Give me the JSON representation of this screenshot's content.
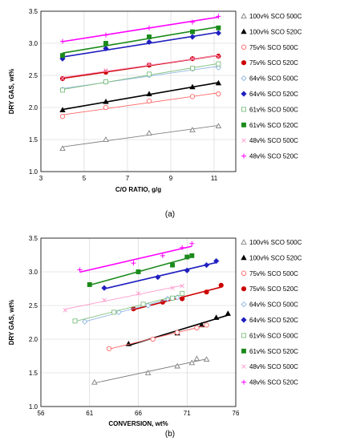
{
  "chart_data": [
    {
      "type": "scatter",
      "caption": "(a)",
      "xlabel": "C/O RATIO, g/g",
      "ylabel": "DRY GAS, wt%",
      "xlim": [
        3,
        12
      ],
      "ylim": [
        1.0,
        3.5
      ],
      "xticks": [
        3,
        5,
        7,
        9,
        11
      ],
      "yticks": [
        1.0,
        1.5,
        2.0,
        2.5,
        3.0,
        3.5
      ],
      "grid": true,
      "legend_position": "right",
      "trendlines": true,
      "series": [
        {
          "name": "100v% SCO 500C",
          "marker": "triangle-open",
          "color": "#808080",
          "x": [
            4.0,
            6.0,
            8.0,
            10.0,
            11.2
          ],
          "y": [
            1.36,
            1.5,
            1.6,
            1.65,
            1.71
          ]
        },
        {
          "name": "100v% SCO 520C",
          "marker": "triangle-filled",
          "color": "#000000",
          "x": [
            4.0,
            6.0,
            8.0,
            10.0,
            11.2
          ],
          "y": [
            1.96,
            2.09,
            2.21,
            2.32,
            2.38
          ]
        },
        {
          "name": "75v% SCO 500C",
          "marker": "circle-open",
          "color": "#ff6666",
          "x": [
            4.0,
            6.0,
            8.0,
            10.0,
            11.2
          ],
          "y": [
            1.86,
            2.0,
            2.1,
            2.17,
            2.21
          ]
        },
        {
          "name": "75v% SCO 520C",
          "marker": "circle-filled",
          "color": "#cc0000",
          "x": [
            4.0,
            6.0,
            8.0,
            10.0,
            11.2
          ],
          "y": [
            2.45,
            2.55,
            2.66,
            2.76,
            2.8
          ]
        },
        {
          "name": "64v% SCO 500C",
          "marker": "diamond-open",
          "color": "#8db4e2",
          "x": [
            4.0,
            6.0,
            8.0,
            10.0,
            11.2
          ],
          "y": [
            2.28,
            2.4,
            2.5,
            2.6,
            2.62
          ]
        },
        {
          "name": "64v% SCO 520C",
          "marker": "diamond-filled",
          "color": "#1f1fbf",
          "x": [
            4.0,
            6.0,
            8.0,
            10.0,
            11.2
          ],
          "y": [
            2.76,
            2.92,
            3.02,
            3.1,
            3.16
          ]
        },
        {
          "name": "61v% SCO 500C",
          "marker": "square-open",
          "color": "#7fbf7f",
          "x": [
            4.0,
            6.0,
            8.0,
            10.0,
            11.2
          ],
          "y": [
            2.27,
            2.4,
            2.52,
            2.61,
            2.68
          ]
        },
        {
          "name": "61v% SCO 520C",
          "marker": "square-filled",
          "color": "#1a8a1a",
          "x": [
            4.0,
            6.0,
            8.0,
            10.0,
            11.2
          ],
          "y": [
            2.81,
            3.0,
            3.1,
            3.18,
            3.24
          ]
        },
        {
          "name": "48v% SCO 500C",
          "marker": "x",
          "color": "#ff99cc",
          "x": [
            4.0,
            6.0,
            8.0,
            10.0,
            11.2
          ],
          "y": [
            2.45,
            2.58,
            2.68,
            2.76,
            2.79
          ]
        },
        {
          "name": "48v% SCO 520C",
          "marker": "plus",
          "color": "#ff00ff",
          "x": [
            4.0,
            6.0,
            8.0,
            10.0,
            11.2
          ],
          "y": [
            3.03,
            3.13,
            3.24,
            3.33,
            3.42
          ]
        }
      ]
    },
    {
      "type": "scatter",
      "caption": "(b)",
      "xlabel": "CONVERSION, wt%",
      "ylabel": "DRY GAS, wt%",
      "xlim": [
        56,
        76
      ],
      "ylim": [
        1.0,
        3.5
      ],
      "xticks": [
        56,
        61,
        66,
        71,
        76
      ],
      "yticks": [
        1.0,
        1.5,
        2.0,
        2.5,
        3.0,
        3.5
      ],
      "grid": true,
      "legend_position": "right",
      "trendlines": true,
      "series": [
        {
          "name": "100v% SCO 500C",
          "marker": "triangle-open",
          "color": "#808080",
          "x": [
            61.5,
            67.0,
            70.0,
            71.5,
            72.0,
            73.0
          ],
          "y": [
            1.36,
            1.5,
            1.6,
            1.65,
            1.71,
            1.7
          ]
        },
        {
          "name": "100v% SCO 520C",
          "marker": "triangle-filled",
          "color": "#000000",
          "x": [
            65.0,
            70.0,
            72.5,
            74.0,
            75.2
          ],
          "y": [
            1.93,
            2.09,
            2.21,
            2.32,
            2.38
          ]
        },
        {
          "name": "75v% SCO 500C",
          "marker": "circle-open",
          "color": "#ff6666",
          "x": [
            63.0,
            67.5,
            70.0,
            72.0,
            73.0
          ],
          "y": [
            1.86,
            2.0,
            2.1,
            2.17,
            2.21
          ]
        },
        {
          "name": "75v% SCO 520C",
          "marker": "circle-filled",
          "color": "#cc0000",
          "x": [
            65.5,
            68.5,
            70.5,
            73.0,
            74.5
          ],
          "y": [
            2.45,
            2.55,
            2.6,
            2.7,
            2.8
          ]
        },
        {
          "name": "64v% SCO 500C",
          "marker": "diamond-open",
          "color": "#8db4e2",
          "x": [
            60.5,
            64.0,
            67.0,
            69.0,
            70.0
          ],
          "y": [
            2.26,
            2.4,
            2.5,
            2.6,
            2.62
          ]
        },
        {
          "name": "64v% SCO 520C",
          "marker": "diamond-filled",
          "color": "#1f1fbf",
          "x": [
            62.5,
            68.0,
            71.0,
            73.0,
            74.0
          ],
          "y": [
            2.76,
            2.92,
            3.02,
            3.1,
            3.16
          ]
        },
        {
          "name": "61v% SCO 500C",
          "marker": "square-open",
          "color": "#7fbf7f",
          "x": [
            59.5,
            63.5,
            66.5,
            69.5,
            70.5
          ],
          "y": [
            2.27,
            2.4,
            2.52,
            2.61,
            2.68
          ]
        },
        {
          "name": "61v% SCO 520C",
          "marker": "square-filled",
          "color": "#1a8a1a",
          "x": [
            61.0,
            66.0,
            69.5,
            71.0,
            71.5
          ],
          "y": [
            2.81,
            3.0,
            3.1,
            3.22,
            3.24
          ]
        },
        {
          "name": "48v% SCO 500C",
          "marker": "x",
          "color": "#ff99cc",
          "x": [
            58.5,
            62.5,
            66.0,
            69.5,
            70.5
          ],
          "y": [
            2.43,
            2.58,
            2.68,
            2.76,
            2.79
          ]
        },
        {
          "name": "48v% SCO 520C",
          "marker": "plus",
          "color": "#ff00ff",
          "x": [
            60.0,
            65.5,
            68.5,
            70.5,
            71.5
          ],
          "y": [
            3.03,
            3.13,
            3.24,
            3.36,
            3.42
          ]
        }
      ]
    }
  ]
}
